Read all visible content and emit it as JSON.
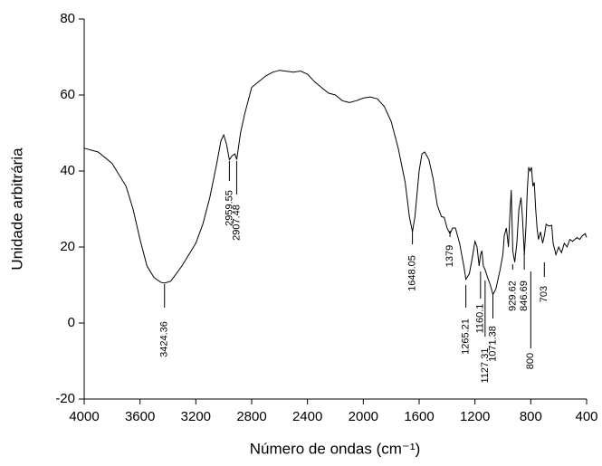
{
  "chart_data": {
    "type": "line",
    "x_label": "Número de ondas (cm⁻¹)",
    "y_label": "Unidade arbitrária",
    "xlim": [
      4000,
      400
    ],
    "ylim": [
      -20,
      80
    ],
    "xticks": [
      4000,
      3600,
      3200,
      2800,
      2400,
      2000,
      1600,
      1200,
      800,
      400
    ],
    "yticks": [
      -20,
      0,
      20,
      40,
      60,
      80
    ],
    "color": "#000000",
    "x": [
      4000,
      3900,
      3800,
      3700,
      3650,
      3600,
      3550,
      3500,
      3450,
      3424,
      3380,
      3300,
      3200,
      3150,
      3100,
      3050,
      3020,
      3000,
      2980,
      2960,
      2940,
      2920,
      2907,
      2880,
      2850,
      2800,
      2750,
      2700,
      2650,
      2600,
      2500,
      2450,
      2400,
      2350,
      2300,
      2250,
      2200,
      2150,
      2100,
      2050,
      2000,
      1950,
      1900,
      1850,
      1800,
      1750,
      1700,
      1670,
      1648,
      1630,
      1600,
      1580,
      1560,
      1530,
      1500,
      1470,
      1440,
      1420,
      1400,
      1379,
      1360,
      1340,
      1310,
      1280,
      1265,
      1240,
      1220,
      1200,
      1185,
      1170,
      1160,
      1150,
      1140,
      1127,
      1110,
      1090,
      1071,
      1050,
      1020,
      1000,
      990,
      975,
      960,
      950,
      940,
      929,
      915,
      900,
      885,
      870,
      860,
      846,
      835,
      825,
      815,
      805,
      795,
      785,
      775,
      765,
      755,
      745,
      730,
      715,
      703,
      690,
      670,
      650,
      640,
      620,
      600,
      580,
      560,
      540,
      520,
      500,
      470,
      450,
      430,
      410,
      400
    ],
    "y": [
      46,
      45,
      42,
      36,
      30,
      22,
      15,
      12,
      10.7,
      10.5,
      11,
      15,
      21,
      26,
      33,
      42,
      48,
      49.5,
      47,
      43,
      44,
      44.5,
      43,
      50,
      55,
      62,
      63.5,
      65,
      66,
      66.5,
      66,
      66.3,
      65.5,
      63.5,
      62,
      60.5,
      60,
      58.5,
      58,
      58.5,
      59.2,
      59.5,
      59,
      57,
      53,
      46,
      37,
      28,
      24,
      28,
      40,
      44.5,
      45,
      43,
      38,
      31,
      28,
      27.8,
      25,
      23.5,
      25,
      25,
      21,
      15,
      11.5,
      13,
      17,
      21.5,
      20,
      15,
      18,
      19,
      15,
      14,
      12,
      10,
      7.5,
      9,
      14,
      18,
      23,
      25,
      20,
      28,
      35,
      19,
      16,
      21,
      30,
      33,
      28,
      18,
      25,
      35,
      41,
      40,
      41,
      36,
      37,
      30,
      25,
      22,
      24,
      21,
      23,
      26,
      25.5,
      25.7,
      21,
      18,
      20,
      18.5,
      21,
      20,
      22,
      21.5,
      22.5,
      22,
      23,
      23.5,
      22.5
    ],
    "annotations": [
      3424.36,
      2959.55,
      2907.48,
      1648.05,
      1379,
      1265.21,
      1160.1,
      1127.31,
      1071.38,
      929.62,
      846.69,
      800,
      703
    ]
  }
}
